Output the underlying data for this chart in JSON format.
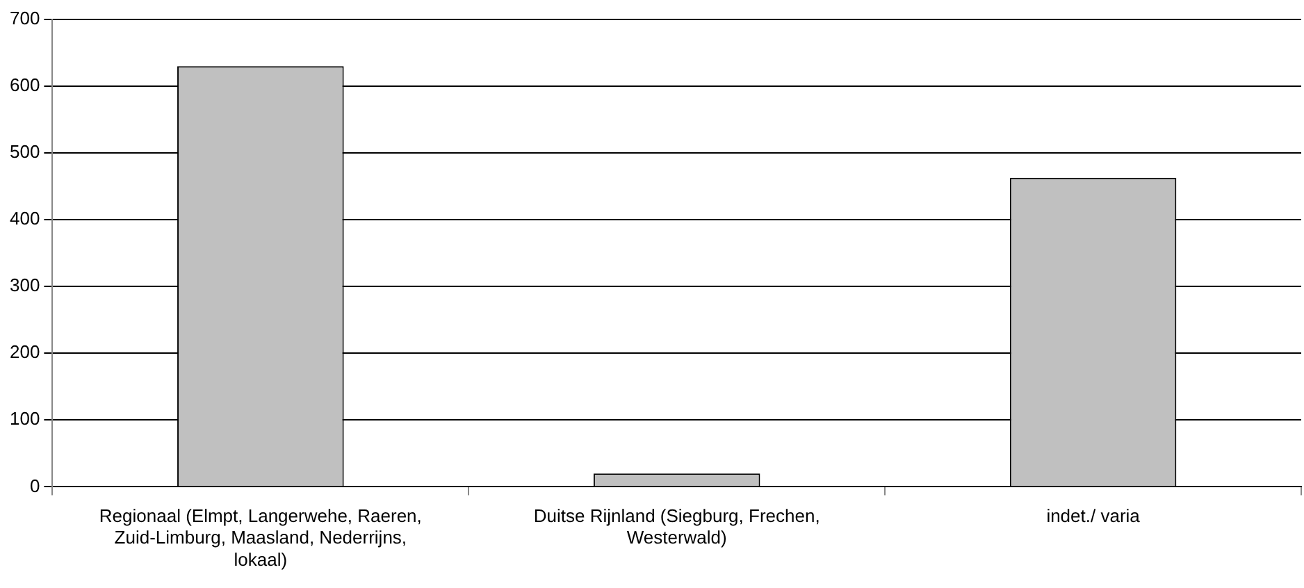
{
  "chart_data": {
    "type": "bar",
    "categories": [
      "Regionaal (Elmpt, Langerwehe, Raeren, Zuid-Limburg, Maasland, Nederrijns, lokaal)",
      "Duitse Rijnland (Siegburg, Frechen, Westerwald)",
      "indet./ varia"
    ],
    "values": [
      630,
      20,
      463
    ],
    "color": "#c0c0c0",
    "ylim": [
      0,
      700
    ],
    "yticks": [
      0,
      100,
      200,
      300,
      400,
      500,
      600,
      700
    ],
    "grid": "y",
    "legend": false
  }
}
